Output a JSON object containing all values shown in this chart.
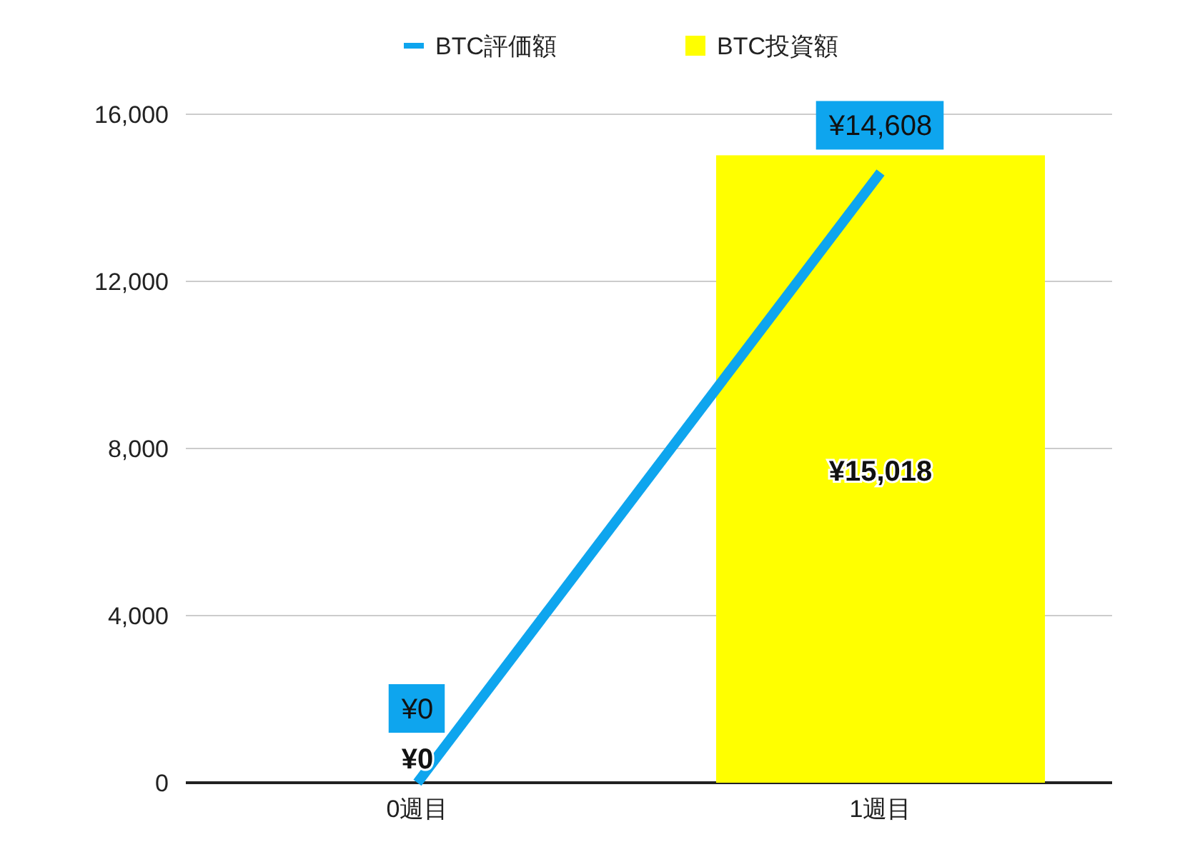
{
  "chart_data": {
    "type": "bar",
    "categories": [
      "0週目",
      "1週目"
    ],
    "series": [
      {
        "name": "BTC評価額",
        "type": "line",
        "color": "#0ea5ee",
        "values": [
          0,
          14608
        ],
        "value_labels": [
          "¥0",
          "¥14,608"
        ]
      },
      {
        "name": "BTC投資額",
        "color": "#ffff00",
        "values": [
          0,
          15018
        ],
        "value_labels": [
          "¥0",
          "¥15,018"
        ]
      }
    ],
    "ylim": [
      0,
      16000
    ],
    "yticks": [
      {
        "value": 0,
        "label": "0"
      },
      {
        "value": 4000,
        "label": "4,000"
      },
      {
        "value": 8000,
        "label": "8,000"
      },
      {
        "value": 12000,
        "label": "12,000"
      },
      {
        "value": 16000,
        "label": "16,000"
      }
    ],
    "grid": "y",
    "legend": "top"
  }
}
